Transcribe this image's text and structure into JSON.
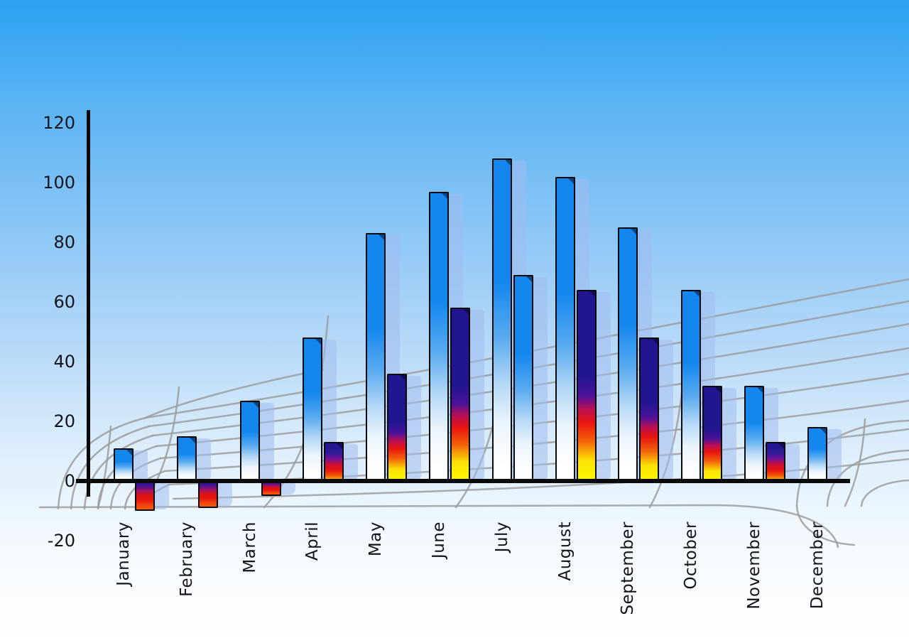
{
  "chart_data": {
    "type": "bar",
    "title": "",
    "xlabel": "",
    "ylabel": "",
    "categories": [
      "January",
      "February",
      "March",
      "April",
      "May",
      "June",
      "July",
      "August",
      "September",
      "October",
      "November",
      "December"
    ],
    "series": [
      {
        "name": "series-1-blue",
        "style": "blue-gradient",
        "values": [
          11,
          15,
          27,
          48,
          83,
          97,
          108,
          102,
          85,
          64,
          32,
          18
        ]
      },
      {
        "name": "series-2-accent",
        "values": [
          -10,
          -9,
          -5,
          13,
          36,
          58,
          69,
          64,
          48,
          32,
          13,
          null
        ],
        "point_styles": [
          "negative-red",
          "negative-red",
          "negative-red",
          "rainbow-short",
          "rainbow",
          "rainbow",
          "blue-gradient",
          "rainbow",
          "rainbow",
          "rainbow",
          "rainbow-short",
          null
        ]
      }
    ],
    "y_axis": {
      "min": -20,
      "max": 120,
      "step": 20,
      "ticks": [
        120,
        100,
        80,
        60,
        40,
        20,
        0,
        -20
      ]
    },
    "legend_position": "none",
    "grid": "curved gray perspective backdrop",
    "background": "blue sky gradient fading to white at bottom"
  },
  "colors": {
    "sky_top": "#2aa1f1",
    "bar_blue": "#1487ef",
    "bar_navy": "#221690",
    "bar_red": "#e81410",
    "bar_yellow": "#fdf701",
    "echo_blue": "rgba(160,188,238,0.55)",
    "grid_gray": "#9a9a9a",
    "axis_black": "#0a0a0a",
    "label_color": "#13131c"
  }
}
